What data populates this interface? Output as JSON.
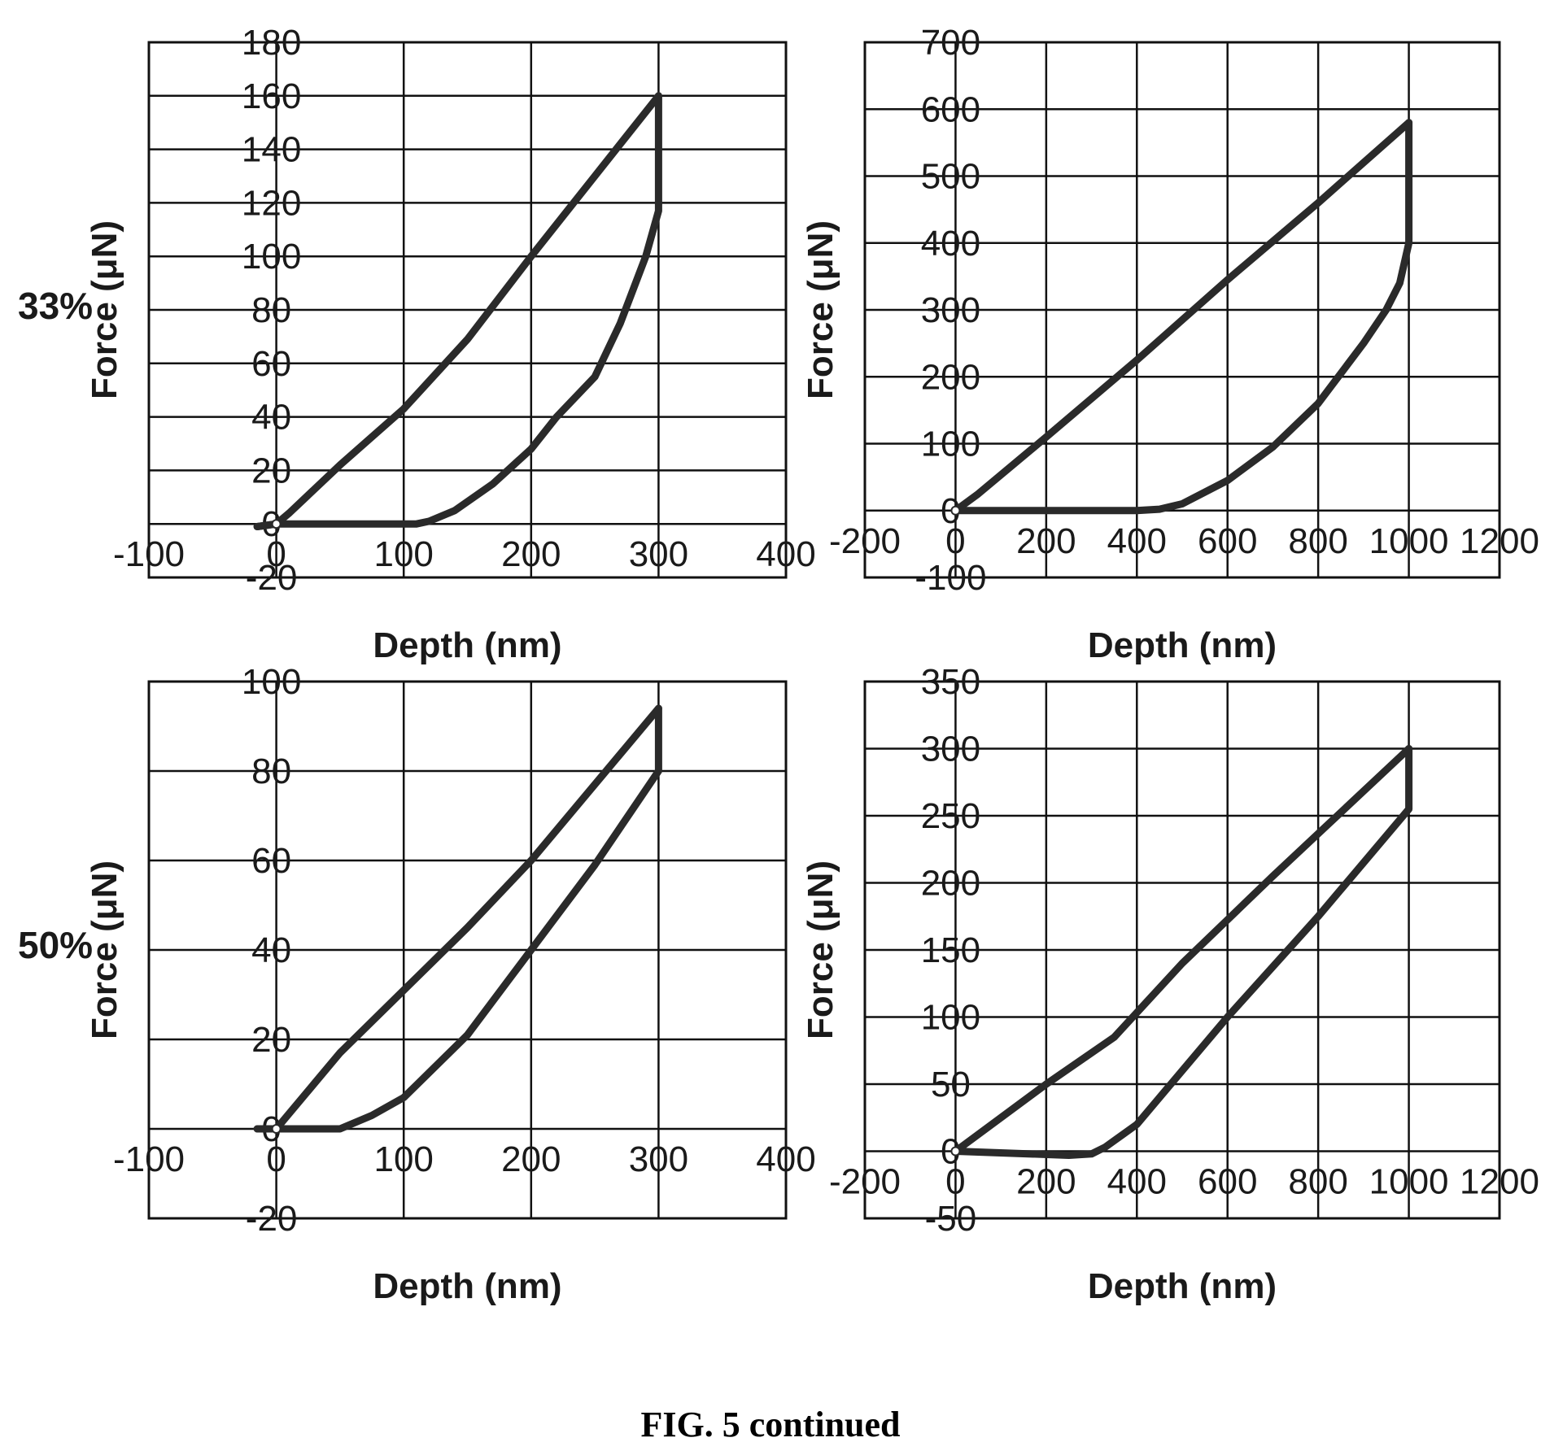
{
  "figure": {
    "caption": "FIG. 5 continued",
    "row_labels": [
      "33%",
      "50%"
    ]
  },
  "chart_data": [
    {
      "type": "line",
      "row_label": "33%",
      "xlabel": "Depth (nm)",
      "ylabel": "Force (μN)",
      "xlim": [
        -100,
        400
      ],
      "ylim": [
        -20,
        180
      ],
      "xticks": [
        -100,
        0,
        100,
        200,
        300,
        400
      ],
      "yticks": [
        -20,
        0,
        20,
        40,
        60,
        80,
        100,
        120,
        140,
        160,
        180
      ],
      "grid": true,
      "series": [
        {
          "values": [
            [
              -15,
              -1
            ],
            [
              0,
              0
            ],
            [
              10,
              4
            ],
            [
              50,
              22
            ],
            [
              100,
              43
            ],
            [
              150,
              69
            ],
            [
              200,
              100
            ],
            [
              250,
              130
            ],
            [
              300,
              160
            ]
          ]
        },
        {
          "values": [
            [
              300,
              160
            ],
            [
              300,
              117
            ],
            [
              290,
              100
            ],
            [
              270,
              75
            ],
            [
              250,
              55
            ],
            [
              220,
              40
            ],
            [
              200,
              28
            ],
            [
              170,
              15
            ],
            [
              140,
              5
            ],
            [
              120,
              1
            ],
            [
              110,
              0
            ],
            [
              50,
              0
            ],
            [
              0,
              0
            ],
            [
              -15,
              -1
            ]
          ]
        }
      ]
    },
    {
      "type": "line",
      "row_label": "33%",
      "xlabel": "Depth (nm)",
      "ylabel": "Force (μN)",
      "xlim": [
        -200,
        1200
      ],
      "ylim": [
        -100,
        700
      ],
      "xticks": [
        -200,
        0,
        200,
        400,
        600,
        800,
        1000,
        1200
      ],
      "yticks": [
        -100,
        0,
        100,
        200,
        300,
        400,
        500,
        600,
        700
      ],
      "grid": true,
      "series": [
        {
          "values": [
            [
              0,
              0
            ],
            [
              50,
              25
            ],
            [
              200,
              110
            ],
            [
              400,
              225
            ],
            [
              600,
              345
            ],
            [
              800,
              460
            ],
            [
              1000,
              580
            ]
          ]
        },
        {
          "values": [
            [
              1000,
              580
            ],
            [
              1000,
              400
            ],
            [
              980,
              340
            ],
            [
              950,
              300
            ],
            [
              900,
              250
            ],
            [
              800,
              160
            ],
            [
              700,
              95
            ],
            [
              600,
              45
            ],
            [
              500,
              10
            ],
            [
              450,
              2
            ],
            [
              400,
              0
            ],
            [
              200,
              0
            ],
            [
              0,
              0
            ]
          ]
        }
      ]
    },
    {
      "type": "line",
      "row_label": "50%",
      "xlabel": "Depth (nm)",
      "ylabel": "Force (μN)",
      "xlim": [
        -100,
        400
      ],
      "ylim": [
        -20,
        100
      ],
      "xticks": [
        -100,
        0,
        100,
        200,
        300,
        400
      ],
      "yticks": [
        -20,
        0,
        20,
        40,
        60,
        80,
        100
      ],
      "grid": true,
      "series": [
        {
          "values": [
            [
              -15,
              0
            ],
            [
              0,
              0
            ],
            [
              50,
              17
            ],
            [
              100,
              31
            ],
            [
              150,
              45
            ],
            [
              200,
              60
            ],
            [
              250,
              77
            ],
            [
              300,
              94
            ]
          ]
        },
        {
          "values": [
            [
              300,
              94
            ],
            [
              300,
              80
            ],
            [
              250,
              59
            ],
            [
              200,
              40
            ],
            [
              150,
              21
            ],
            [
              100,
              7
            ],
            [
              75,
              3
            ],
            [
              50,
              0
            ],
            [
              0,
              0
            ],
            [
              -15,
              0
            ]
          ]
        }
      ]
    },
    {
      "type": "line",
      "row_label": "50%",
      "xlabel": "Depth (nm)",
      "ylabel": "Force (μN)",
      "xlim": [
        -200,
        1200
      ],
      "ylim": [
        -50,
        350
      ],
      "xticks": [
        -200,
        0,
        200,
        400,
        600,
        800,
        1000,
        1200
      ],
      "yticks": [
        -50,
        0,
        50,
        100,
        150,
        200,
        250,
        300,
        350
      ],
      "grid": true,
      "series": [
        {
          "values": [
            [
              0,
              0
            ],
            [
              200,
              50
            ],
            [
              350,
              85
            ],
            [
              500,
              140
            ],
            [
              700,
              205
            ],
            [
              1000,
              300
            ]
          ]
        },
        {
          "values": [
            [
              1000,
              300
            ],
            [
              1000,
              255
            ],
            [
              800,
              175
            ],
            [
              600,
              100
            ],
            [
              450,
              40
            ],
            [
              400,
              20
            ],
            [
              330,
              3
            ],
            [
              300,
              -2
            ],
            [
              250,
              -3
            ],
            [
              0,
              0
            ]
          ]
        }
      ]
    }
  ]
}
